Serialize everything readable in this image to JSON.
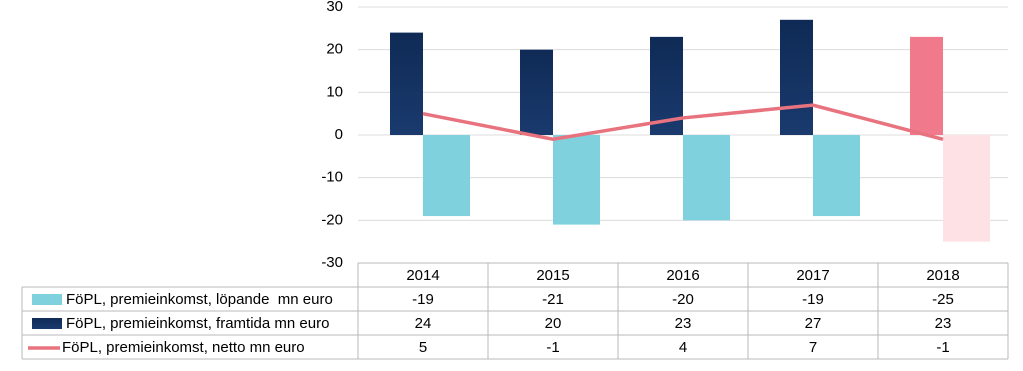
{
  "chart_data": {
    "type": "bar-line-table",
    "categories": [
      "2014",
      "2015",
      "2016",
      "2017",
      "2018"
    ],
    "series": [
      {
        "name": "FöPL, premieinkomst, löpande  mn euro",
        "kind": "bar",
        "color": "#7fd1de",
        "colors": [
          "#7fd1de",
          "#7fd1de",
          "#7fd1de",
          "#7fd1de",
          "#fde1e4"
        ],
        "values": [
          -19,
          -21,
          -20,
          -19,
          -25
        ]
      },
      {
        "name": "FöPL, premieinkomst, framtida mn euro",
        "kind": "bar",
        "color": "#0f2a55",
        "colors": [
          "#0f2a55",
          "#0f2a55",
          "#0f2a55",
          "#0f2a55",
          "#f07a8b"
        ],
        "values": [
          24,
          20,
          23,
          27,
          23
        ]
      },
      {
        "name": "FöPL, premieinkomst, netto mn euro",
        "kind": "line",
        "color": "#e8737f",
        "values": [
          5,
          -1,
          4,
          7,
          -1
        ]
      }
    ],
    "ylim": [
      -30,
      30
    ],
    "yticks": [
      -30,
      -20,
      -10,
      0,
      10,
      20,
      30
    ],
    "grid": true
  }
}
